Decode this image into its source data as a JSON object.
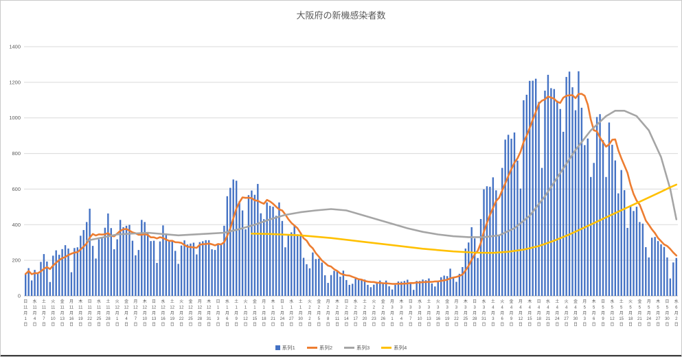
{
  "chart_data": {
    "type": "bar",
    "title": "大阪府の新機感染者数",
    "ylim": [
      0,
      1400
    ],
    "y_ticks": [
      0,
      200,
      400,
      600,
      800,
      1000,
      1200,
      1400
    ],
    "x_start_date": "11月1日",
    "x_end_date": "6月2日",
    "x_tick_interval_days": 3,
    "tick_month_suffix": "月",
    "tick_day_suffix": "日",
    "grid": true,
    "legend_position": "bottom",
    "colors": {
      "grid": "#D9D9D9",
      "axis_line": "#BFBFBF",
      "axis_text": "#595959",
      "title_text": "#595959"
    },
    "legend": [
      "系列1",
      "系列2",
      "系列3",
      "系列4"
    ],
    "series": [
      {
        "name": "系列1",
        "type": "bar",
        "color": "#4472C4",
        "values": [
          123,
          156,
          87,
          146,
          125,
          191,
          235,
          193,
          78,
          226,
          256,
          231,
          263,
          285,
          266,
          133,
          269,
          273,
          338,
          370,
          415,
          490,
          281,
          210,
          318,
          326,
          383,
          463,
          381,
          262,
          318,
          427,
          386,
          394,
          399,
          310,
          228,
          258,
          427,
          415,
          357,
          308,
          310,
          185,
          306,
          396,
          351,
          309,
          311,
          253,
          180,
          283,
          312,
          289,
          294,
          299,
          233,
          302,
          307,
          313,
          313,
          262,
          258,
          286,
          286,
          394,
          560,
          607,
          654,
          647,
          532,
          480,
          374,
          566,
          592,
          568,
          629,
          464,
          431,
          525,
          506,
          501,
          450,
          525,
          421,
          273,
          343,
          357,
          397,
          346,
          338,
          214,
          178,
          155,
          244,
          207,
          209,
          187,
          116,
          73,
          117,
          141,
          141,
          108,
          142,
          89,
          62,
          68,
          97,
          91,
          90,
          92,
          62,
          49,
          63,
          72,
          86,
          75,
          86,
          54,
          36,
          62,
          81,
          80,
          84,
          91,
          73,
          34,
          84,
          84,
          92,
          88,
          98,
          70,
          53,
          84,
          105,
          114,
          111,
          153,
          100,
          79,
          124,
          162,
          266,
          300,
          386,
          323,
          213,
          432,
          599,
          616,
          613,
          666,
          593,
          341,
          719,
          878,
          905,
          883,
          918,
          760,
          603,
          1099,
          1130,
          1208,
          1209,
          1220,
          1090,
          719,
          1153,
          1242,
          1167,
          1162,
          1097,
          1050,
          922,
          1230,
          1260,
          1172,
          1043,
          1262,
          1057,
          847,
          884,
          668,
          747,
          1005,
          1021,
          875,
          668,
          974,
          849,
          761,
          576,
          707,
          594,
          382,
          509,
          477,
          501,
          415,
          406,
          274,
          216,
          327,
          331,
          308,
          290,
          275,
          216,
          98,
          188,
          213
        ]
      },
      {
        "name": "系列2",
        "type": "line",
        "color": "#ED7D31",
        "derivation": "7-day moving average of 系列1",
        "window": 7
      },
      {
        "name": "系列3",
        "type": "line",
        "color": "#A5A5A5",
        "points": [
          [
            20,
            310
          ],
          [
            30,
            345
          ],
          [
            40,
            355
          ],
          [
            50,
            340
          ],
          [
            60,
            350
          ],
          [
            65,
            355
          ],
          [
            70,
            375
          ],
          [
            75,
            400
          ],
          [
            80,
            430
          ],
          [
            85,
            455
          ],
          [
            90,
            470
          ],
          [
            95,
            480
          ],
          [
            100,
            488
          ],
          [
            105,
            480
          ],
          [
            110,
            455
          ],
          [
            115,
            430
          ],
          [
            120,
            405
          ],
          [
            125,
            380
          ],
          [
            130,
            360
          ],
          [
            135,
            345
          ],
          [
            140,
            335
          ],
          [
            145,
            330
          ],
          [
            150,
            330
          ],
          [
            155,
            340
          ],
          [
            160,
            380
          ],
          [
            165,
            450
          ],
          [
            170,
            560
          ],
          [
            175,
            690
          ],
          [
            180,
            820
          ],
          [
            185,
            930
          ],
          [
            190,
            1010
          ],
          [
            193,
            1040
          ],
          [
            196,
            1040
          ],
          [
            200,
            1010
          ],
          [
            204,
            930
          ],
          [
            208,
            780
          ],
          [
            211,
            600
          ],
          [
            213,
            430
          ]
        ]
      },
      {
        "name": "系列4",
        "type": "line",
        "color": "#FFC000",
        "points": [
          [
            74,
            350
          ],
          [
            80,
            348
          ],
          [
            90,
            340
          ],
          [
            100,
            325
          ],
          [
            110,
            305
          ],
          [
            120,
            285
          ],
          [
            130,
            265
          ],
          [
            140,
            250
          ],
          [
            147,
            243
          ],
          [
            153,
            242
          ],
          [
            158,
            248
          ],
          [
            163,
            260
          ],
          [
            168,
            280
          ],
          [
            173,
            310
          ],
          [
            178,
            345
          ],
          [
            183,
            385
          ],
          [
            188,
            425
          ],
          [
            193,
            465
          ],
          [
            198,
            505
          ],
          [
            203,
            545
          ],
          [
            208,
            585
          ],
          [
            211,
            610
          ],
          [
            213,
            625
          ]
        ]
      }
    ],
    "x_ticks": [
      {
        "w": "日",
        "m": "11",
        "d": "1"
      },
      {
        "w": "水",
        "m": "11",
        "d": "4"
      },
      {
        "w": "土",
        "m": "11",
        "d": "7"
      },
      {
        "w": "火",
        "m": "11",
        "d": "10"
      },
      {
        "w": "金",
        "m": "11",
        "d": "13"
      },
      {
        "w": "月",
        "m": "11",
        "d": "16"
      },
      {
        "w": "木",
        "m": "11",
        "d": "19"
      },
      {
        "w": "日",
        "m": "11",
        "d": "22"
      },
      {
        "w": "水",
        "m": "11",
        "d": "25"
      },
      {
        "w": "土",
        "m": "11",
        "d": "28"
      },
      {
        "w": "火",
        "m": "12",
        "d": "1"
      },
      {
        "w": "金",
        "m": "12",
        "d": "4"
      },
      {
        "w": "月",
        "m": "12",
        "d": "7"
      },
      {
        "w": "木",
        "m": "12",
        "d": "10"
      },
      {
        "w": "日",
        "m": "12",
        "d": "13"
      },
      {
        "w": "水",
        "m": "12",
        "d": "16"
      },
      {
        "w": "土",
        "m": "12",
        "d": "19"
      },
      {
        "w": "火",
        "m": "12",
        "d": "22"
      },
      {
        "w": "金",
        "m": "12",
        "d": "25"
      },
      {
        "w": "月",
        "m": "12",
        "d": "28"
      },
      {
        "w": "木",
        "m": "12",
        "d": "31"
      },
      {
        "w": "日",
        "m": "1",
        "d": "3"
      },
      {
        "w": "水",
        "m": "1",
        "d": "6"
      },
      {
        "w": "土",
        "m": "1",
        "d": "9"
      },
      {
        "w": "火",
        "m": "1",
        "d": "12"
      },
      {
        "w": "金",
        "m": "1",
        "d": "15"
      },
      {
        "w": "月",
        "m": "1",
        "d": "18"
      },
      {
        "w": "木",
        "m": "1",
        "d": "21"
      },
      {
        "w": "日",
        "m": "1",
        "d": "24"
      },
      {
        "w": "水",
        "m": "1",
        "d": "27"
      },
      {
        "w": "土",
        "m": "1",
        "d": "30"
      },
      {
        "w": "火",
        "m": "2",
        "d": "2"
      },
      {
        "w": "金",
        "m": "2",
        "d": "5"
      },
      {
        "w": "月",
        "m": "2",
        "d": "8"
      },
      {
        "w": "木",
        "m": "2",
        "d": "11"
      },
      {
        "w": "日",
        "m": "2",
        "d": "14"
      },
      {
        "w": "水",
        "m": "2",
        "d": "17"
      },
      {
        "w": "土",
        "m": "2",
        "d": "20"
      },
      {
        "w": "火",
        "m": "2",
        "d": "23"
      },
      {
        "w": "金",
        "m": "2",
        "d": "26"
      },
      {
        "w": "月",
        "m": "3",
        "d": "1"
      },
      {
        "w": "木",
        "m": "3",
        "d": "4"
      },
      {
        "w": "日",
        "m": "3",
        "d": "7"
      },
      {
        "w": "水",
        "m": "3",
        "d": "10"
      },
      {
        "w": "土",
        "m": "3",
        "d": "13"
      },
      {
        "w": "火",
        "m": "3",
        "d": "16"
      },
      {
        "w": "金",
        "m": "3",
        "d": "19"
      },
      {
        "w": "月",
        "m": "3",
        "d": "22"
      },
      {
        "w": "木",
        "m": "3",
        "d": "25"
      },
      {
        "w": "日",
        "m": "3",
        "d": "28"
      },
      {
        "w": "水",
        "m": "3",
        "d": "31"
      },
      {
        "w": "土",
        "m": "4",
        "d": "3"
      },
      {
        "w": "火",
        "m": "4",
        "d": "6"
      },
      {
        "w": "金",
        "m": "4",
        "d": "9"
      },
      {
        "w": "月",
        "m": "4",
        "d": "12"
      },
      {
        "w": "木",
        "m": "4",
        "d": "15"
      },
      {
        "w": "日",
        "m": "4",
        "d": "18"
      },
      {
        "w": "水",
        "m": "4",
        "d": "21"
      },
      {
        "w": "土",
        "m": "4",
        "d": "24"
      },
      {
        "w": "火",
        "m": "4",
        "d": "27"
      },
      {
        "w": "金",
        "m": "4",
        "d": "30"
      },
      {
        "w": "月",
        "m": "5",
        "d": "3"
      },
      {
        "w": "木",
        "m": "5",
        "d": "6"
      },
      {
        "w": "日",
        "m": "5",
        "d": "9"
      },
      {
        "w": "水",
        "m": "5",
        "d": "12"
      },
      {
        "w": "土",
        "m": "5",
        "d": "15"
      },
      {
        "w": "火",
        "m": "5",
        "d": "18"
      },
      {
        "w": "金",
        "m": "5",
        "d": "21"
      },
      {
        "w": "月",
        "m": "5",
        "d": "24"
      },
      {
        "w": "木",
        "m": "5",
        "d": "27"
      },
      {
        "w": "日",
        "m": "5",
        "d": "30"
      },
      {
        "w": "水",
        "m": "6",
        "d": "2"
      }
    ]
  }
}
